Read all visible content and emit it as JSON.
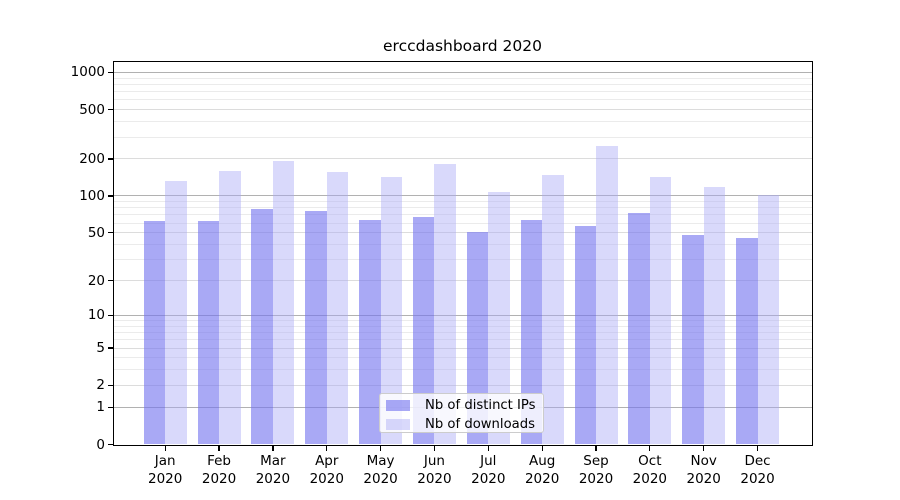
{
  "title": "erccdashboard 2020",
  "chart_data": {
    "type": "bar",
    "title": "erccdashboard 2020",
    "categories": [
      "Jan",
      "Feb",
      "Mar",
      "Apr",
      "May",
      "Jun",
      "Jul",
      "Aug",
      "Sep",
      "Oct",
      "Nov",
      "Dec"
    ],
    "x_year_label": "2020",
    "series": [
      {
        "name": "Nb of distinct IPs",
        "values": [
          62,
          63,
          79,
          75,
          64,
          67,
          51,
          64,
          57,
          73,
          48,
          45
        ]
      },
      {
        "name": "Nb of downloads",
        "values": [
          132,
          160,
          192,
          157,
          143,
          181,
          108,
          148,
          254,
          143,
          118,
          102
        ]
      }
    ],
    "yscale": "log1p",
    "ylim": [
      0,
      1270
    ],
    "yticks": [
      0,
      1,
      2,
      5,
      10,
      20,
      50,
      100,
      200,
      500,
      1000
    ],
    "minor_gridlines": [
      3,
      4,
      6,
      7,
      8,
      9,
      30,
      40,
      60,
      70,
      80,
      90,
      300,
      400,
      600,
      700,
      800,
      900
    ],
    "grid": true,
    "legend_position": "lower center"
  },
  "colors": {
    "bar_distinct_ips": "rgba(116,116,239,0.62)",
    "bar_downloads": "rgba(168,168,246,0.44)",
    "grid_major": "#b1b1b1",
    "grid_minor": "#dcdcdc",
    "grid_faint": "#ebebeb",
    "axis": "#000000"
  }
}
